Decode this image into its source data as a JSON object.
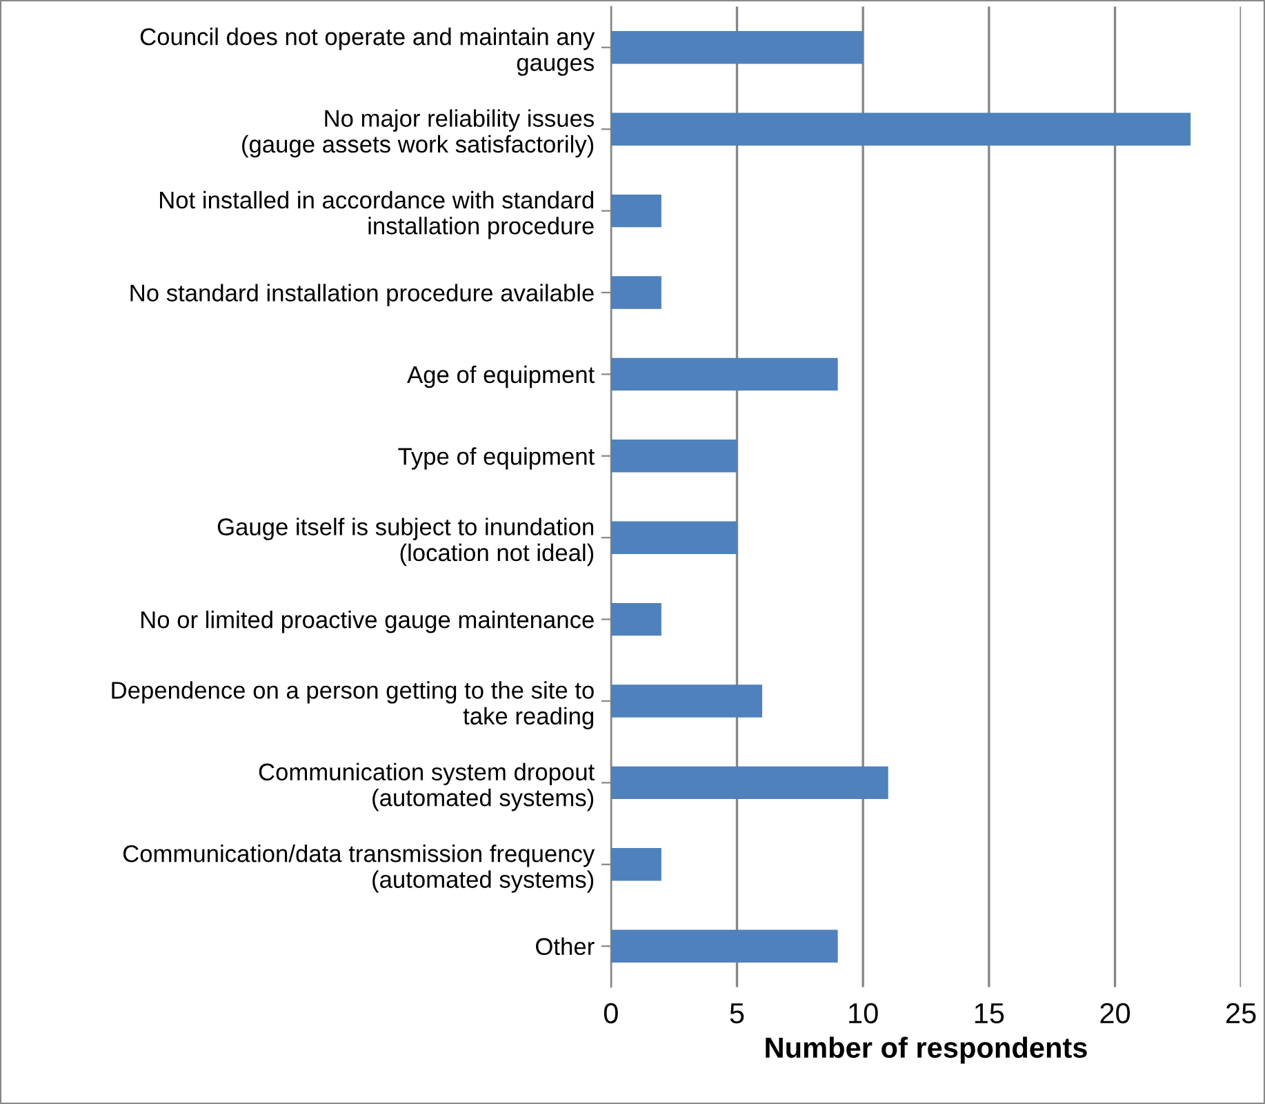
{
  "chart_data": {
    "type": "bar",
    "orientation": "horizontal",
    "xlabel": "Number of respondents",
    "categories": [
      "Council does not operate and maintain any\ngauges",
      "No major reliability issues\n(gauge assets work satisfactorily)",
      "Not installed in accordance with standard\ninstallation procedure",
      "No standard installation procedure available",
      "Age of equipment",
      "Type of equipment",
      "Gauge itself is subject to inundation\n(location not ideal)",
      "No or limited proactive gauge maintenance",
      "Dependence on a person getting to the site to\ntake reading",
      "Communication system dropout\n(automated systems)",
      "Communication/data transmission frequency\n(automated systems)",
      "Other"
    ],
    "values": [
      10,
      23,
      2,
      2,
      9,
      5,
      5,
      2,
      6,
      11,
      2,
      9
    ],
    "color": "#4f81bd",
    "xlim": [
      0,
      25
    ],
    "xticks": [
      0,
      5,
      10,
      15,
      20,
      25
    ],
    "grid": "x",
    "legend": false
  }
}
